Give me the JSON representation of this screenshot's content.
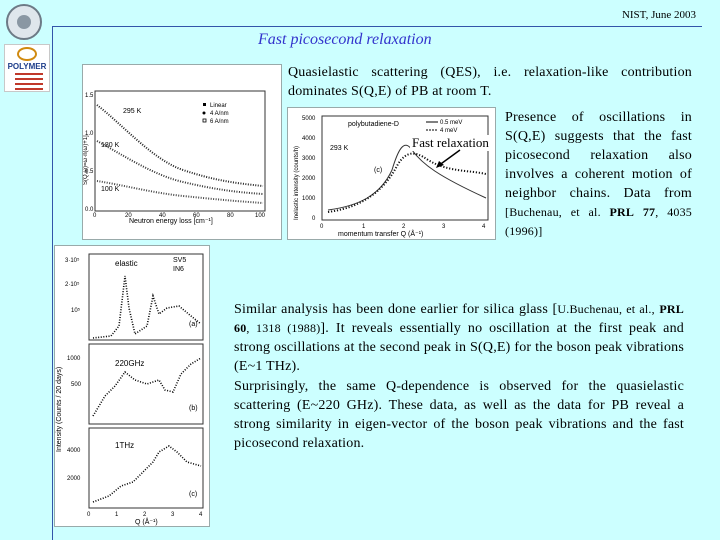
{
  "header": {
    "date": "NIST, June 2003"
  },
  "logos": {
    "polymer_text": "POLYMER"
  },
  "title": "Fast picosecond relaxation",
  "intro": "Quasielastic scattering (QES), i.e. relaxation-like contribution dominates S(Q,E) of PB at room T.",
  "presence": {
    "text": "Presence of oscillations in S(Q,E) suggests that the fast picosecond relaxation also involves a coherent motion of neighbor chains. Data from",
    "citation_pre": "[Buchenau, et al. ",
    "citation_journal": "PRL",
    "citation_vol": "77",
    "citation_post": ", 4035 (1996)]"
  },
  "similar": {
    "text1": "Similar analysis has been done earlier for silica glass [",
    "cite_authors": "U.Buchenau, et al.,",
    "cite_journal": "PRL 60",
    "cite_rest": ", 1318 (1988)",
    "text2": "]. It reveals essentially no oscillation at the first peak and strong oscillations at the second peak in S(Q,E)  for the boson peak vibrations (E~1 THz)."
  },
  "surprise": "Surprisingly, the same Q-dependence is observed for the quasielastic scattering (E~220 GHz). These data, as well as the data for PB reveal a strong similarity in eigen-vector of the boson peak vibrations and the fast picosecond relaxation.",
  "fig1": {
    "ylabel": "S(Q,ω)=ω·n(ω)+1]",
    "xlabel": "Neutron energy loss [cm⁻¹]",
    "curve_labels": [
      "295 K",
      "180 K",
      "100 K"
    ],
    "legend": [
      "Linear",
      "4 A/nm",
      "6 A/nm"
    ],
    "xticks": [
      "0",
      "20",
      "40",
      "60",
      "80",
      "100"
    ],
    "yticks": [
      "1.5",
      "1.0",
      "0.5",
      "0.0"
    ]
  },
  "fig2": {
    "title": "polybutadiene-D",
    "ylabel": "Inelastic intensity (counts/h)",
    "xlabel": "momentum transfer Q (Å⁻¹)",
    "yticks": [
      "5000",
      "4000",
      "3000",
      "2000",
      "1000",
      "0"
    ],
    "xticks": [
      "0",
      "1",
      "2",
      "3",
      "4"
    ],
    "temp": "293 K",
    "panel": "(c)",
    "legend": [
      "0.5 meV",
      "4 meV"
    ],
    "annotation": "Fast relaxation"
  },
  "fig3": {
    "ylabel": "Intensity (Counts / 20 days)",
    "xlabel": "Q (Å⁻¹)",
    "legend": [
      "SV5",
      "IN6"
    ],
    "panels": [
      {
        "label": "elastic",
        "tag": "(a)",
        "yticks": [
          "3·10⁵",
          "2·10⁵",
          "10⁵"
        ]
      },
      {
        "label": "220GHz",
        "tag": "(b)",
        "yticks": [
          "1000",
          "500"
        ]
      },
      {
        "label": "1THz",
        "tag": "(c)",
        "yticks": [
          "4000",
          "2000"
        ]
      }
    ],
    "xticks": [
      "0",
      "1",
      "2",
      "3",
      "4"
    ]
  }
}
